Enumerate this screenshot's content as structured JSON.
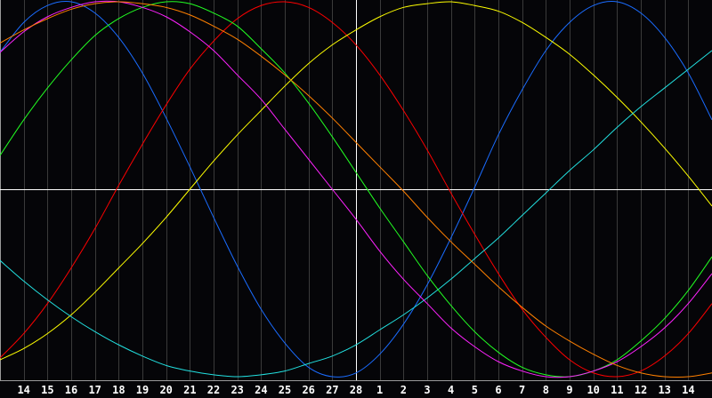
{
  "chart_data": {
    "type": "line",
    "title": "",
    "xlabel": "",
    "ylabel": "",
    "ylim": [
      -1,
      1
    ],
    "grid": true,
    "legend": "none",
    "x_tick_labels": [
      "14",
      "15",
      "16",
      "17",
      "18",
      "19",
      "20",
      "21",
      "22",
      "23",
      "24",
      "25",
      "26",
      "27",
      "28",
      "1",
      "2",
      "3",
      "4",
      "5",
      "6",
      "7",
      "8",
      "9",
      "10",
      "11",
      "12",
      "13",
      "14"
    ],
    "highlighted_tick": "28",
    "series": [
      {
        "color": "#1a6cff",
        "values": [
          0.89,
          0.98,
          1.0,
          0.94,
          0.81,
          0.62,
          0.38,
          0.12,
          -0.15,
          -0.41,
          -0.64,
          -0.82,
          -0.95,
          -1.0,
          -0.98,
          -0.88,
          -0.72,
          -0.51,
          -0.26,
          0.01,
          0.29,
          0.53,
          0.74,
          0.89,
          0.98,
          1.0,
          0.94,
          0.81,
          0.62
        ]
      },
      {
        "color": "#ff0000",
        "values": [
          -0.77,
          -0.61,
          -0.42,
          -0.21,
          0.02,
          0.24,
          0.45,
          0.64,
          0.79,
          0.91,
          0.98,
          1.0,
          0.97,
          0.89,
          0.77,
          0.61,
          0.42,
          0.21,
          -0.02,
          -0.24,
          -0.45,
          -0.64,
          -0.79,
          -0.91,
          -0.98,
          -1.0,
          -0.97,
          -0.89,
          -0.77
        ]
      },
      {
        "color": "#ffff00",
        "values": [
          -0.85,
          -0.77,
          -0.67,
          -0.55,
          -0.42,
          -0.29,
          -0.15,
          0.0,
          0.15,
          0.29,
          0.42,
          0.55,
          0.67,
          0.77,
          0.85,
          0.92,
          0.97,
          0.99,
          1.0,
          0.98,
          0.95,
          0.89,
          0.81,
          0.72,
          0.61,
          0.49,
          0.36,
          0.22,
          0.07
        ]
      },
      {
        "color": "#22e0e0",
        "values": [
          -0.49,
          -0.59,
          -0.68,
          -0.76,
          -0.83,
          -0.89,
          -0.94,
          -0.97,
          -0.99,
          -1.0,
          -0.99,
          -0.97,
          -0.93,
          -0.89,
          -0.83,
          -0.75,
          -0.67,
          -0.58,
          -0.48,
          -0.37,
          -0.26,
          -0.14,
          -0.02,
          0.1,
          0.21,
          0.33,
          0.44,
          0.54,
          0.64
        ]
      },
      {
        "color": "#22ff22",
        "values": [
          0.37,
          0.54,
          0.69,
          0.82,
          0.91,
          0.97,
          1.0,
          0.99,
          0.94,
          0.87,
          0.75,
          0.62,
          0.46,
          0.28,
          0.09,
          -0.1,
          -0.28,
          -0.46,
          -0.62,
          -0.76,
          -0.87,
          -0.95,
          -0.99,
          -1.0,
          -0.97,
          -0.91,
          -0.81,
          -0.69,
          -0.54
        ]
      },
      {
        "color": "#ff22ff",
        "values": [
          0.84,
          0.92,
          0.97,
          1.0,
          1.0,
          0.97,
          0.92,
          0.84,
          0.74,
          0.61,
          0.48,
          0.32,
          0.16,
          0.0,
          -0.16,
          -0.33,
          -0.48,
          -0.61,
          -0.74,
          -0.84,
          -0.92,
          -0.97,
          -1.0,
          -1.0,
          -0.97,
          -0.92,
          -0.84,
          -0.74,
          -0.61
        ]
      },
      {
        "color": "#ff8000",
        "values": [
          0.85,
          0.91,
          0.96,
          0.99,
          1.0,
          0.99,
          0.97,
          0.93,
          0.87,
          0.8,
          0.71,
          0.61,
          0.5,
          0.38,
          0.25,
          0.12,
          -0.01,
          -0.15,
          -0.28,
          -0.4,
          -0.52,
          -0.63,
          -0.73,
          -0.81,
          -0.88,
          -0.94,
          -0.98,
          -1.0,
          -1.0
        ]
      }
    ],
    "colors": {
      "background": "#050508",
      "grid": "#3a3a3a",
      "axis": "#9a9a9a",
      "center_lines": "#ffffff",
      "labels": "#ffffff"
    }
  }
}
